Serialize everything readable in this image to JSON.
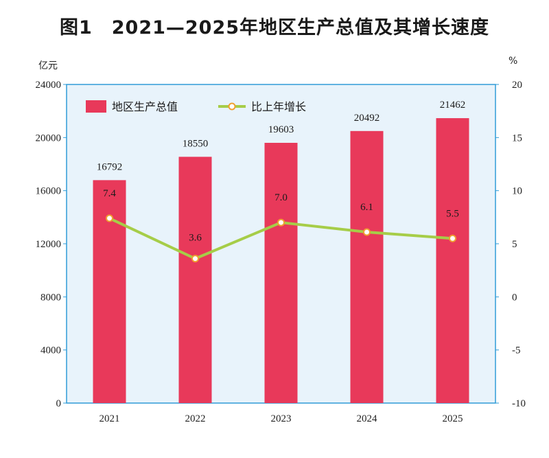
{
  "title": "图1　2021—2025年地区生产总值及其增长速度",
  "colors": {
    "bar": "#e8395a",
    "line": "#a6cd48",
    "marker_fill": "#ffffff",
    "marker_stroke": "#f0a030",
    "plot_bg": "#e8f3fb",
    "frame": "#2f9bd7"
  },
  "chart_data": {
    "type": "bar",
    "categories": [
      "2021",
      "2022",
      "2023",
      "2024",
      "2025"
    ],
    "series": [
      {
        "name": "地区生产总值",
        "type": "bar",
        "axis": "left",
        "values": [
          16792,
          18550,
          19603,
          20492,
          21462
        ]
      },
      {
        "name": "比上年增长",
        "type": "line",
        "axis": "right",
        "values": [
          7.4,
          3.6,
          7.0,
          6.1,
          5.5
        ]
      }
    ],
    "bar_labels": [
      "16792",
      "18550",
      "19603",
      "20492",
      "21462"
    ],
    "line_labels": [
      "7.4",
      "3.6",
      "7.0",
      "6.1",
      "5.5"
    ],
    "y_left": {
      "label": "亿元",
      "range": [
        0,
        24000
      ],
      "ticks": [
        0,
        4000,
        8000,
        12000,
        16000,
        20000,
        24000
      ]
    },
    "y_right": {
      "label": "%",
      "range": [
        -10,
        20
      ],
      "ticks": [
        -10,
        -5,
        0,
        5,
        10,
        15,
        20
      ]
    },
    "legend": [
      "地区生产总值",
      "比上年增长"
    ],
    "legend_position": "top-left",
    "grid": false
  }
}
